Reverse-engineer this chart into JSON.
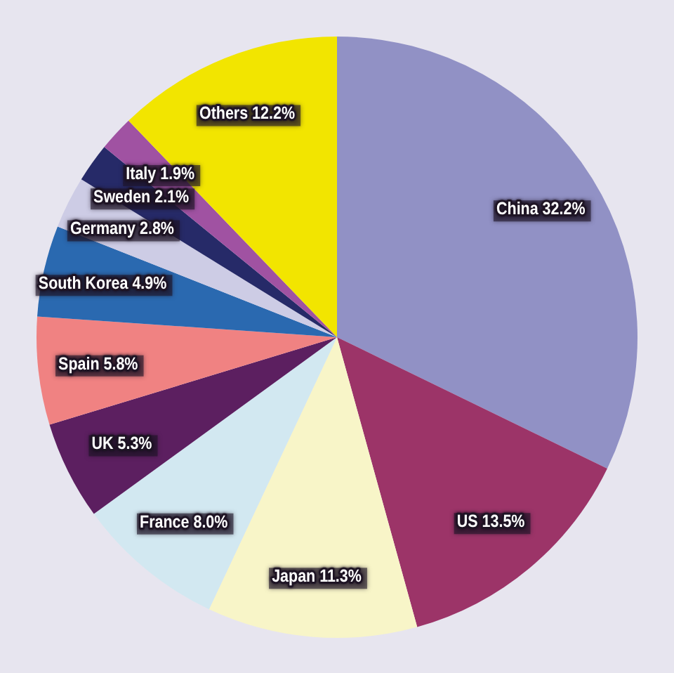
{
  "chart_data": {
    "type": "pie",
    "categories": [
      "China",
      "US",
      "Japan",
      "France",
      "UK",
      "Spain",
      "South Korea",
      "Germany",
      "Sweden",
      "Italy",
      "Others"
    ],
    "values": [
      32.2,
      13.5,
      11.3,
      8.0,
      5.3,
      5.8,
      4.9,
      2.8,
      2.1,
      1.9,
      12.2
    ],
    "value_labels": [
      "32.2%",
      "13.5%",
      "11.3%",
      "8.0%",
      "5.3%",
      "5.8%",
      "4.9%",
      "2.8%",
      "2.1%",
      "1.9%",
      "12.2%"
    ],
    "colors": [
      "#9191c5",
      "#9c3468",
      "#f8f5c8",
      "#d2e8f1",
      "#5c1f60",
      "#f08282",
      "#2a69b0",
      "#cdcce5",
      "#262a68",
      "#a052a2",
      "#f2e500"
    ]
  }
}
